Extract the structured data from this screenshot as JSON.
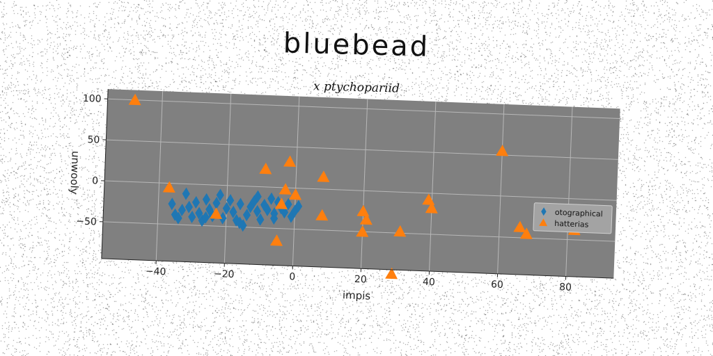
{
  "title": "bluebead",
  "subtitle": "x ptychopariid",
  "chart_data": {
    "type": "scatter",
    "xlabel": "impis",
    "ylabel": "unwooly",
    "xlim": [
      -56,
      94
    ],
    "ylim": [
      -95,
      112
    ],
    "xticks": [
      -40,
      -20,
      0,
      20,
      40,
      60,
      80
    ],
    "yticks": [
      -50,
      0,
      50,
      100
    ],
    "grid": true,
    "plot_background": "#808080",
    "legend_position": "right",
    "series": [
      {
        "name": "otographical",
        "marker": "diamond",
        "color": "#1f77b4",
        "points": [
          [
            -36,
            -25
          ],
          [
            -35,
            -38
          ],
          [
            -34,
            -42
          ],
          [
            -33,
            -32
          ],
          [
            -32,
            -12
          ],
          [
            -31,
            -28
          ],
          [
            -30,
            -40
          ],
          [
            -29,
            -22
          ],
          [
            -28,
            -35
          ],
          [
            -27,
            -44
          ],
          [
            -26,
            -18
          ],
          [
            -25,
            -30
          ],
          [
            -24,
            -38
          ],
          [
            -23,
            -22
          ],
          [
            -22,
            -12
          ],
          [
            -21,
            -40
          ],
          [
            -20,
            -28
          ],
          [
            -19,
            -18
          ],
          [
            -18,
            -32
          ],
          [
            -17,
            -42
          ],
          [
            -16,
            -22
          ],
          [
            -15,
            -48
          ],
          [
            -14,
            -35
          ],
          [
            -13,
            -25
          ],
          [
            -12,
            -18
          ],
          [
            -11,
            -30
          ],
          [
            -10,
            -40
          ],
          [
            -9,
            -22
          ],
          [
            -8,
            -28
          ],
          [
            -7,
            -14
          ],
          [
            -6,
            -32
          ],
          [
            -5,
            -18
          ],
          [
            -4,
            -25
          ],
          [
            -3,
            -30
          ],
          [
            -2,
            -20
          ],
          [
            -1,
            -35
          ],
          [
            0,
            -28
          ],
          [
            1,
            -22
          ],
          [
            -16,
            -45
          ],
          [
            -26,
            -40
          ],
          [
            -11,
            -12
          ],
          [
            -6,
            -38
          ]
        ]
      },
      {
        "name": "hatterias",
        "marker": "triangle",
        "color": "#ff7f0e",
        "points": [
          [
            -48,
            100
          ],
          [
            -37,
            -5
          ],
          [
            -23,
            -35
          ],
          [
            -9,
            22
          ],
          [
            -2,
            32
          ],
          [
            -4,
            -20
          ],
          [
            -3,
            -2
          ],
          [
            0,
            -8
          ],
          [
            -5,
            -65
          ],
          [
            8,
            15
          ],
          [
            8,
            -32
          ],
          [
            20,
            -25
          ],
          [
            21,
            -35
          ],
          [
            20,
            -50
          ],
          [
            29,
            -100
          ],
          [
            31,
            -48
          ],
          [
            39,
            -8
          ],
          [
            40,
            -18
          ],
          [
            60,
            55
          ],
          [
            66,
            -37
          ],
          [
            68,
            -45
          ],
          [
            82,
            -38
          ]
        ]
      }
    ]
  }
}
